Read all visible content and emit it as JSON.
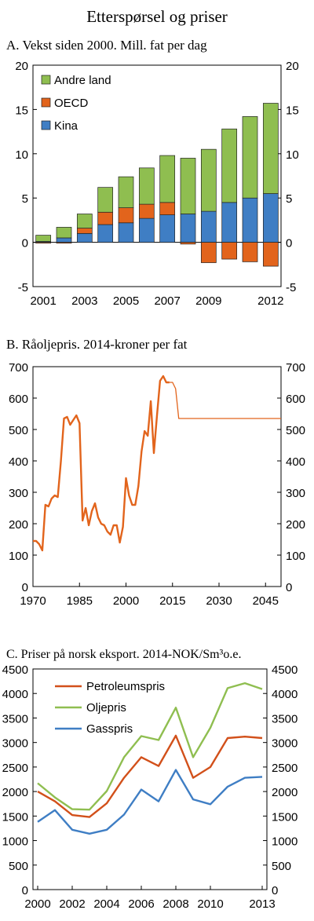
{
  "figure_title": "Etterspørsel og priser",
  "chart_data": [
    {
      "type": "bar",
      "title": "A.  Vekst siden 2000. Mill. fat per dag",
      "ylim": [
        -5,
        20
      ],
      "yticks": [
        -5,
        0,
        5,
        10,
        15,
        20
      ],
      "categories": [
        "2001",
        "2002",
        "2003",
        "2004",
        "2005",
        "2006",
        "2007",
        "2008",
        "2009",
        "2010",
        "2011",
        "2012"
      ],
      "xtick_labels": [
        "2001",
        "2003",
        "2005",
        "2007",
        "2009",
        "2012"
      ],
      "stacked": true,
      "series": [
        {
          "name": "Kina",
          "color": "#3f7ec4",
          "values": [
            0.1,
            0.5,
            1.0,
            2.0,
            2.2,
            2.7,
            3.1,
            3.2,
            3.5,
            4.5,
            5.0,
            5.5
          ]
        },
        {
          "name": "OECD",
          "color": "#e2641c",
          "values": [
            -0.1,
            -0.1,
            0.6,
            1.4,
            1.7,
            1.6,
            1.4,
            -0.2,
            -2.3,
            -1.9,
            -2.2,
            -2.7
          ]
        },
        {
          "name": "Andre land",
          "color": "#8fbe50",
          "values": [
            0.7,
            1.2,
            1.6,
            2.8,
            3.5,
            4.1,
            5.3,
            6.3,
            7.0,
            8.3,
            9.2,
            10.2
          ]
        }
      ],
      "legend": [
        "Andre land",
        "OECD",
        "Kina"
      ],
      "legend_position": "top-left",
      "grid": false
    },
    {
      "type": "line",
      "title": "B.  Råoljepris. 2014-kroner per fat",
      "ylim": [
        0,
        700
      ],
      "yticks": [
        0,
        100,
        200,
        300,
        400,
        500,
        600,
        700
      ],
      "xlim": [
        1970,
        2050
      ],
      "xticks": [
        1970,
        1985,
        2000,
        2015,
        2030,
        2045
      ],
      "grid": false,
      "series": [
        {
          "color": "#e2641c",
          "style": "thick",
          "x": [
            1970,
            1971,
            1972,
            1973,
            1974,
            1975,
            1976,
            1977,
            1978,
            1979,
            1980,
            1981,
            1982,
            1983,
            1984,
            1985,
            1986,
            1987,
            1988,
            1989,
            1990,
            1991,
            1992,
            1993,
            1994,
            1995,
            1996,
            1997,
            1998,
            1999,
            2000,
            2001,
            2002,
            2003,
            2004,
            2005,
            2006,
            2007,
            2008,
            2009,
            2010,
            2011,
            2012,
            2013,
            2014
          ],
          "y": [
            145,
            145,
            135,
            115,
            260,
            255,
            280,
            290,
            285,
            400,
            535,
            540,
            515,
            530,
            545,
            520,
            210,
            250,
            195,
            240,
            265,
            220,
            200,
            195,
            175,
            165,
            195,
            195,
            140,
            190,
            345,
            290,
            260,
            260,
            320,
            430,
            495,
            480,
            590,
            425,
            545,
            655,
            670,
            650,
            650
          ]
        },
        {
          "color": "#e2641c",
          "style": "thin",
          "x": [
            2014,
            2015,
            2016,
            2017,
            2018,
            2020,
            2025,
            2030,
            2035,
            2040,
            2045,
            2050
          ],
          "y": [
            650,
            650,
            630,
            535,
            535,
            535,
            535,
            535,
            535,
            535,
            535,
            535
          ]
        }
      ]
    },
    {
      "type": "line",
      "title": "C.  Priser på norsk eksport. 2014-NOK/Sm³o.e.",
      "ylim": [
        0,
        4500
      ],
      "yticks": [
        0,
        500,
        1000,
        1500,
        2000,
        2500,
        3000,
        3500,
        4000,
        4500
      ],
      "x": [
        2000,
        2001,
        2002,
        2003,
        2004,
        2005,
        2006,
        2007,
        2008,
        2009,
        2010,
        2011,
        2012,
        2013
      ],
      "xtick_labels": [
        "2000",
        "2002",
        "2004",
        "2006",
        "2008",
        "2010",
        "2013"
      ],
      "legend_position": "top-left",
      "grid": false,
      "series": [
        {
          "name": "Petroleumspris",
          "color": "#d2501a",
          "values": [
            2000,
            1800,
            1520,
            1480,
            1760,
            2280,
            2700,
            2520,
            3140,
            2280,
            2500,
            3090,
            3120,
            3090
          ]
        },
        {
          "name": "Oljepris",
          "color": "#8fbe50",
          "values": [
            2170,
            1880,
            1640,
            1630,
            2010,
            2700,
            3130,
            3050,
            3710,
            2700,
            3300,
            4110,
            4210,
            4090
          ]
        },
        {
          "name": "Gasspris",
          "color": "#3f7ec4",
          "values": [
            1380,
            1620,
            1220,
            1140,
            1220,
            1530,
            2040,
            1800,
            2440,
            1840,
            1740,
            2100,
            2280,
            2300
          ]
        }
      ]
    }
  ]
}
